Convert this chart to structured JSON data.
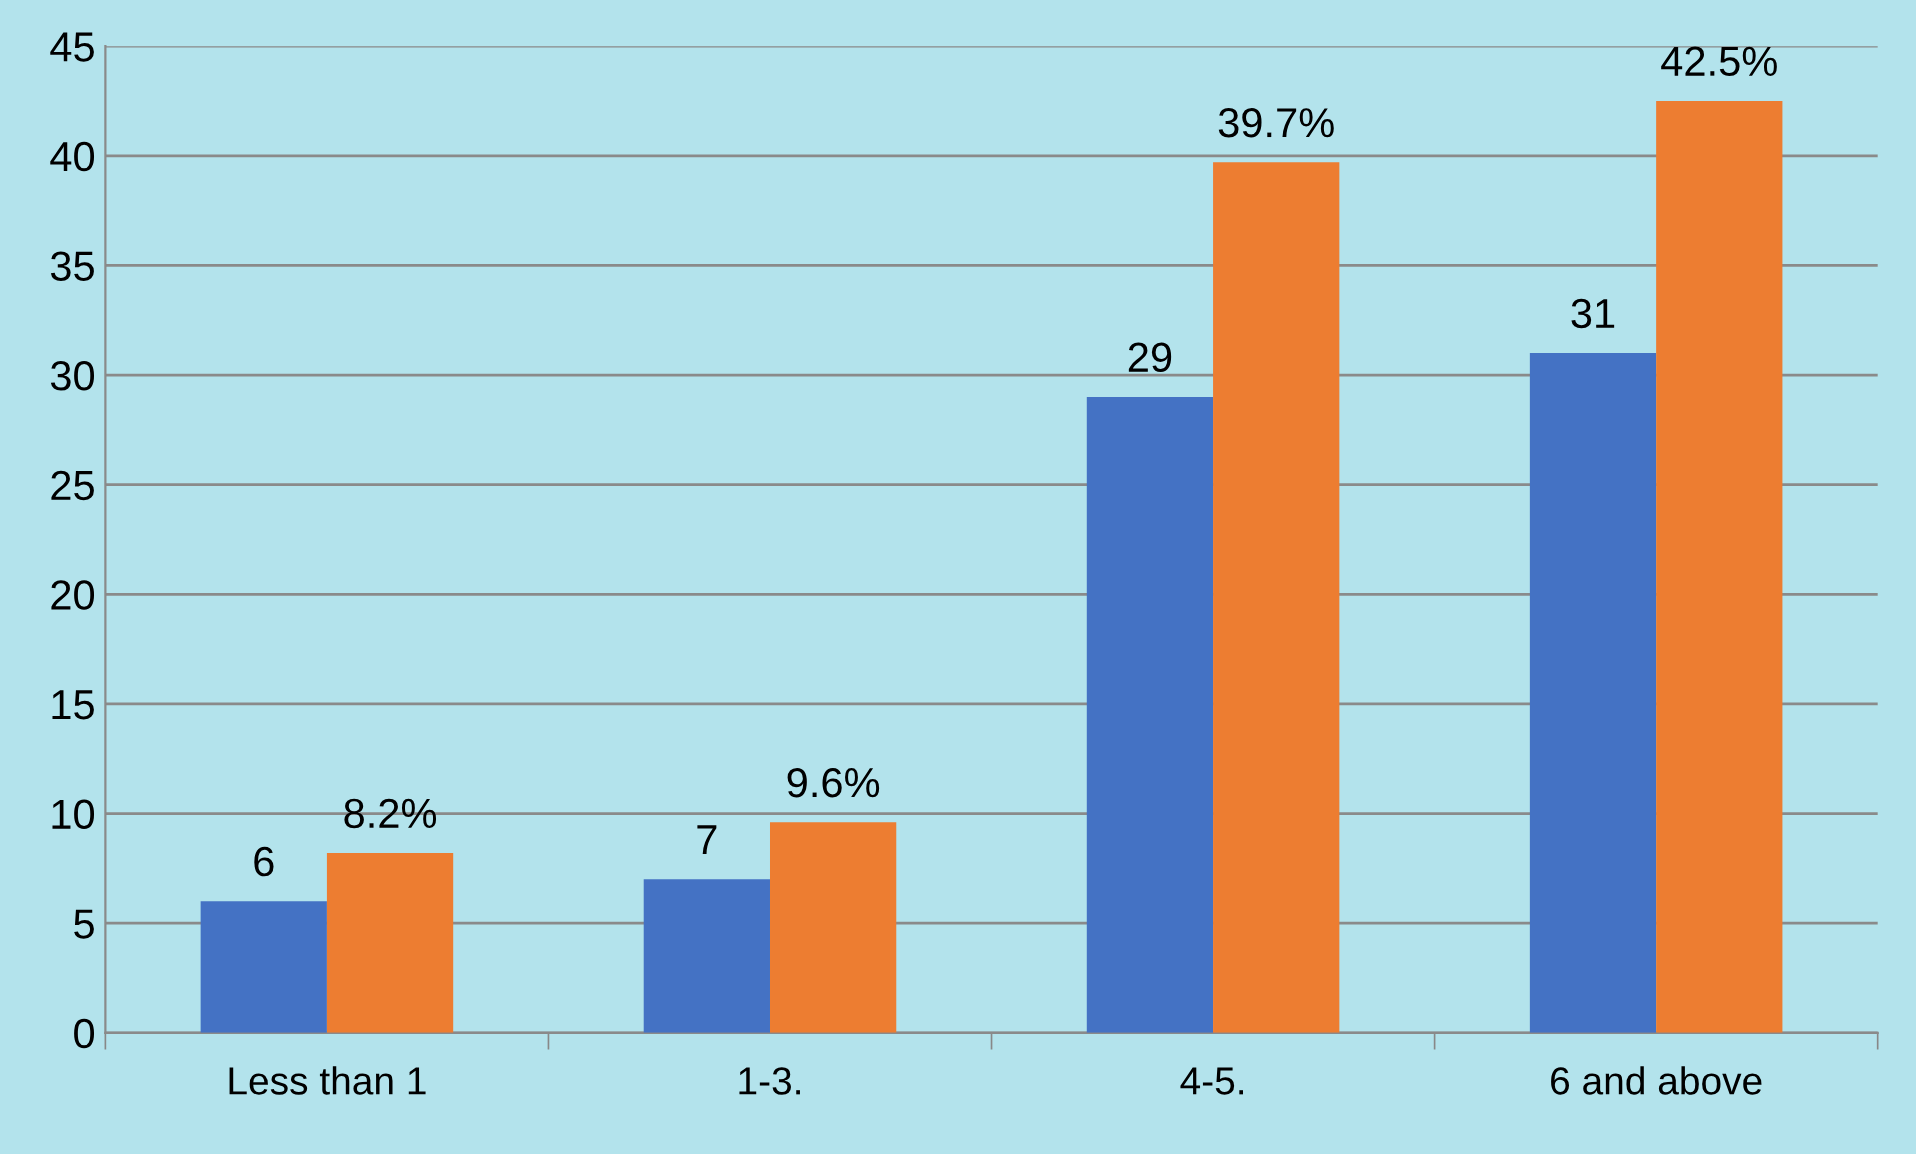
{
  "chart_data": {
    "type": "bar",
    "categories": [
      "Less than 1",
      "1-3.",
      "4-5.",
      "6 and above"
    ],
    "series": [
      {
        "color": "#4472c4",
        "values": [
          6,
          7,
          29,
          31
        ],
        "value_labels": [
          "6",
          "7",
          "29",
          "31"
        ]
      },
      {
        "color": "#ed7d31",
        "values": [
          8.2,
          9.6,
          39.7,
          42.5
        ],
        "value_labels": [
          "8.2%",
          "9.6%",
          "39.7%",
          "42.5%"
        ]
      }
    ],
    "ylim": [
      0,
      45
    ],
    "yticks": [
      0,
      5,
      10,
      15,
      20,
      25,
      30,
      35,
      40,
      45
    ],
    "grid": "y",
    "legend": false
  }
}
